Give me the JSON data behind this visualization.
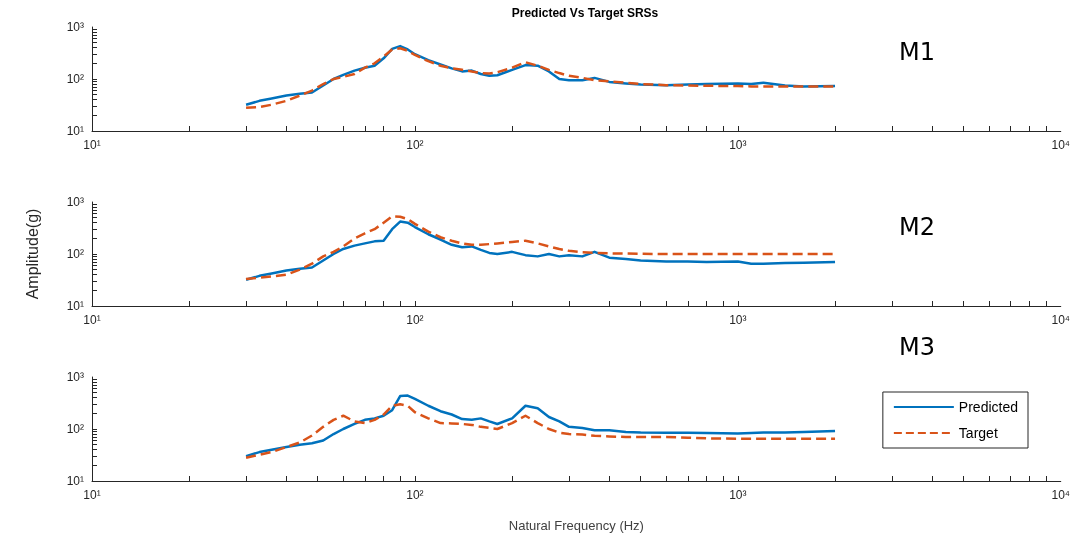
{
  "chart_data": [
    {
      "type": "line",
      "title": "Predicted Vs Target SRSs",
      "annotations": [
        "M1"
      ],
      "log": "xy",
      "grid": false,
      "legend": false,
      "marker": "none",
      "tick_labels": "xy",
      "xlim": [
        10,
        10000
      ],
      "xticks": [
        {
          "value": 10,
          "label": "10¹"
        },
        {
          "value": 100,
          "label": "10²"
        },
        {
          "value": 1000,
          "label": "10³"
        },
        {
          "value": 10000,
          "label": "10⁴"
        }
      ],
      "ylim": [
        10,
        1000
      ],
      "yticks": [
        {
          "value": 10,
          "label": "10¹"
        },
        {
          "value": 100,
          "label": "10²"
        },
        {
          "value": 1000,
          "label": "10³"
        }
      ],
      "x": [
        30,
        33,
        36,
        40,
        44,
        48,
        52,
        56,
        60,
        65,
        70,
        75,
        80,
        85,
        90,
        95,
        100,
        110,
        120,
        130,
        140,
        150,
        160,
        170,
        180,
        200,
        220,
        240,
        260,
        280,
        300,
        330,
        360,
        400,
        450,
        500,
        600,
        700,
        800,
        1000,
        1100,
        1200,
        1400,
        1600,
        2000
      ],
      "series": [
        {
          "color": "#0072bd",
          "line_style": "solid",
          "values": [
            32,
            38,
            42,
            48,
            52,
            55,
            75,
            100,
            120,
            145,
            165,
            180,
            250,
            380,
            430,
            370,
            300,
            230,
            190,
            160,
            140,
            145,
            125,
            115,
            118,
            150,
            185,
            180,
            140,
            100,
            95,
            95,
            105,
            88,
            82,
            78,
            76,
            78,
            80,
            82,
            80,
            85,
            75,
            72,
            73
          ]
        },
        {
          "color": "#d95319",
          "line_style": "dashed",
          "values": [
            28,
            29,
            32,
            38,
            48,
            60,
            80,
            100,
            110,
            125,
            165,
            200,
            270,
            370,
            390,
            350,
            290,
            220,
            180,
            160,
            150,
            140,
            130,
            128,
            135,
            165,
            210,
            180,
            150,
            130,
            115,
            105,
            95,
            90,
            85,
            80,
            76,
            75,
            74,
            73,
            72,
            72,
            72,
            72,
            72
          ]
        }
      ]
    },
    {
      "type": "line",
      "ylabel": "Amplitude(g)",
      "annotations": [
        "M2"
      ],
      "log": "xy",
      "grid": false,
      "legend": false,
      "marker": "none",
      "tick_labels": "xy",
      "xlim": [
        10,
        10000
      ],
      "xticks": [
        {
          "value": 10,
          "label": "10¹"
        },
        {
          "value": 100,
          "label": "10²"
        },
        {
          "value": 1000,
          "label": "10³"
        },
        {
          "value": 10000,
          "label": "10⁴"
        }
      ],
      "ylim": [
        10,
        1000
      ],
      "yticks": [
        {
          "value": 10,
          "label": "10¹"
        },
        {
          "value": 100,
          "label": "10²"
        },
        {
          "value": 1000,
          "label": "10³"
        }
      ],
      "x": [
        30,
        33,
        36,
        40,
        44,
        48,
        52,
        56,
        60,
        65,
        70,
        75,
        80,
        85,
        90,
        95,
        100,
        110,
        120,
        130,
        140,
        150,
        160,
        170,
        180,
        200,
        220,
        240,
        260,
        280,
        300,
        330,
        360,
        400,
        450,
        500,
        600,
        700,
        800,
        1000,
        1100,
        1200,
        1400,
        1600,
        2000
      ],
      "series": [
        {
          "color": "#0072bd",
          "line_style": "solid",
          "values": [
            32,
            38,
            42,
            48,
            52,
            55,
            75,
            100,
            125,
            145,
            160,
            175,
            180,
            300,
            420,
            400,
            330,
            240,
            190,
            150,
            135,
            140,
            120,
            105,
            100,
            110,
            95,
            90,
            100,
            90,
            95,
            90,
            110,
            85,
            80,
            75,
            72,
            72,
            70,
            72,
            65,
            65,
            67,
            68,
            70
          ]
        },
        {
          "color": "#d95319",
          "line_style": "dashed",
          "values": [
            33,
            35,
            37,
            40,
            50,
            65,
            90,
            110,
            140,
            200,
            250,
            300,
            400,
            530,
            520,
            470,
            380,
            270,
            210,
            180,
            160,
            150,
            150,
            155,
            160,
            170,
            180,
            160,
            140,
            125,
            115,
            108,
            105,
            103,
            102,
            101,
            100,
            100,
            100,
            100,
            100,
            100,
            100,
            100,
            100
          ]
        }
      ]
    },
    {
      "type": "line",
      "xlabel": "Natural Frequency (Hz)",
      "annotations": [
        "M3"
      ],
      "log": "xy",
      "grid": false,
      "legend": "right",
      "marker": "none",
      "xlim": [
        10,
        10000
      ],
      "xticks": [
        {
          "value": 10,
          "label": "10¹"
        },
        {
          "value": 100,
          "label": "10²"
        },
        {
          "value": 1000,
          "label": "10³"
        },
        {
          "value": 10000,
          "label": "10⁴"
        }
      ],
      "ylim": [
        10,
        1000
      ],
      "yticks": [
        {
          "value": 10,
          "label": "10¹"
        },
        {
          "value": 100,
          "label": "10²"
        },
        {
          "value": 1000,
          "label": "10³"
        }
      ],
      "x": [
        30,
        33,
        36,
        40,
        44,
        48,
        52,
        56,
        60,
        65,
        70,
        75,
        80,
        85,
        90,
        95,
        100,
        110,
        120,
        130,
        140,
        150,
        160,
        170,
        180,
        200,
        220,
        240,
        260,
        280,
        300,
        330,
        360,
        400,
        450,
        500,
        600,
        700,
        800,
        1000,
        1100,
        1200,
        1400,
        1600,
        2000
      ],
      "series": [
        {
          "name": "Predicted",
          "color": "#0072bd",
          "line_style": "solid",
          "values": [
            30,
            36,
            40,
            45,
            50,
            53,
            60,
            80,
            100,
            125,
            150,
            160,
            180,
            230,
            430,
            440,
            380,
            280,
            220,
            190,
            155,
            150,
            160,
            140,
            125,
            160,
            280,
            250,
            170,
            140,
            110,
            105,
            95,
            95,
            88,
            86,
            85,
            85,
            84,
            82,
            84,
            86,
            86,
            88,
            92
          ]
        },
        {
          "name": "Target",
          "color": "#d95319",
          "line_style": "dashed",
          "values": [
            28,
            32,
            36,
            45,
            55,
            75,
            110,
            150,
            180,
            140,
            130,
            150,
            190,
            280,
            300,
            280,
            210,
            160,
            130,
            128,
            125,
            120,
            110,
            105,
            100,
            130,
            180,
            130,
            100,
            85,
            80,
            78,
            74,
            72,
            70,
            70,
            70,
            68,
            66,
            65,
            65,
            65,
            65,
            65,
            65
          ]
        }
      ]
    }
  ]
}
